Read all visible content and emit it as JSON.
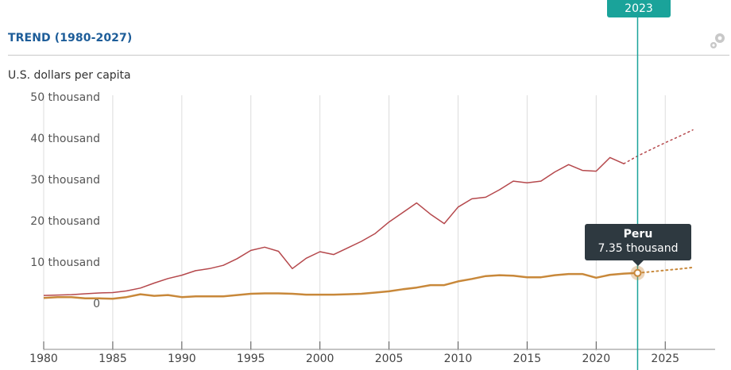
{
  "header": {
    "title": "TREND (1980-2027)"
  },
  "ylabel": "U.S. dollars per capita",
  "selected_year": "2023",
  "tooltip": {
    "name": "Peru",
    "value": "7.35 thousand"
  },
  "colors": {
    "title": "#1d5d99",
    "accent": "#1aa39a",
    "series_top": "#b5484c",
    "series_peru": "#c8883a"
  },
  "chart_data": {
    "type": "line",
    "xlim": [
      1980,
      2027
    ],
    "ylim": [
      0,
      50000
    ],
    "x_ticks": [
      "1980",
      "1985",
      "1990",
      "1995",
      "2000",
      "2005",
      "2010",
      "2015",
      "2020",
      "2025"
    ],
    "y_ticks": [
      "50 thousand",
      "40 thousand",
      "30 thousand",
      "20 thousand",
      "10 thousand",
      "0"
    ],
    "y_tick_values": [
      50000,
      40000,
      30000,
      20000,
      10000,
      0
    ],
    "series": [
      {
        "color": "#b5484c",
        "actual": [
          [
            1980,
            1900
          ],
          [
            1981,
            2000
          ],
          [
            1982,
            2100
          ],
          [
            1983,
            2300
          ],
          [
            1984,
            2500
          ],
          [
            1985,
            2600
          ],
          [
            1986,
            3000
          ],
          [
            1987,
            3700
          ],
          [
            1988,
            4900
          ],
          [
            1989,
            6000
          ],
          [
            1990,
            6800
          ],
          [
            1991,
            7900
          ],
          [
            1992,
            8400
          ],
          [
            1993,
            9200
          ],
          [
            1994,
            10800
          ],
          [
            1995,
            12800
          ],
          [
            1996,
            13600
          ],
          [
            1997,
            12600
          ],
          [
            1998,
            8400
          ],
          [
            1999,
            10900
          ],
          [
            2000,
            12500
          ],
          [
            2001,
            11800
          ],
          [
            2002,
            13400
          ],
          [
            2003,
            15000
          ],
          [
            2004,
            16900
          ],
          [
            2005,
            19700
          ],
          [
            2006,
            22000
          ],
          [
            2007,
            24300
          ],
          [
            2008,
            21600
          ],
          [
            2009,
            19300
          ],
          [
            2010,
            23300
          ],
          [
            2011,
            25300
          ],
          [
            2012,
            25700
          ],
          [
            2013,
            27500
          ],
          [
            2014,
            29600
          ],
          [
            2015,
            29200
          ],
          [
            2016,
            29600
          ],
          [
            2017,
            31800
          ],
          [
            2018,
            33600
          ],
          [
            2019,
            32200
          ],
          [
            2020,
            32000
          ],
          [
            2021,
            35300
          ],
          [
            2022,
            33800
          ]
        ],
        "projected": [
          [
            2022,
            33800
          ],
          [
            2023,
            35700
          ],
          [
            2024,
            37300
          ],
          [
            2025,
            38900
          ],
          [
            2026,
            40400
          ],
          [
            2027,
            42000
          ]
        ]
      },
      {
        "name": "Peru",
        "color": "#c8883a",
        "actual": [
          [
            1980,
            1300
          ],
          [
            1981,
            1500
          ],
          [
            1982,
            1500
          ],
          [
            1983,
            1200
          ],
          [
            1984,
            1200
          ],
          [
            1985,
            1100
          ],
          [
            1986,
            1500
          ],
          [
            1987,
            2200
          ],
          [
            1988,
            1800
          ],
          [
            1989,
            2000
          ],
          [
            1990,
            1500
          ],
          [
            1991,
            1700
          ],
          [
            1992,
            1700
          ],
          [
            1993,
            1700
          ],
          [
            1994,
            2000
          ],
          [
            1995,
            2300
          ],
          [
            1996,
            2400
          ],
          [
            1997,
            2400
          ],
          [
            1998,
            2300
          ],
          [
            1999,
            2100
          ],
          [
            2000,
            2100
          ],
          [
            2001,
            2100
          ],
          [
            2002,
            2200
          ],
          [
            2003,
            2300
          ],
          [
            2004,
            2600
          ],
          [
            2005,
            2900
          ],
          [
            2006,
            3400
          ],
          [
            2007,
            3800
          ],
          [
            2008,
            4400
          ],
          [
            2009,
            4400
          ],
          [
            2010,
            5300
          ],
          [
            2011,
            5900
          ],
          [
            2012,
            6600
          ],
          [
            2013,
            6800
          ],
          [
            2014,
            6700
          ],
          [
            2015,
            6300
          ],
          [
            2016,
            6300
          ],
          [
            2017,
            6800
          ],
          [
            2018,
            7100
          ],
          [
            2019,
            7100
          ],
          [
            2020,
            6200
          ],
          [
            2021,
            6900
          ],
          [
            2022,
            7200
          ],
          [
            2023,
            7350
          ]
        ],
        "projected": [
          [
            2023,
            7350
          ],
          [
            2024,
            7650
          ],
          [
            2025,
            8000
          ],
          [
            2026,
            8300
          ],
          [
            2027,
            8700
          ]
        ]
      }
    ],
    "highlight": {
      "series": "Peru",
      "x": 2023,
      "y": 7350
    },
    "grid": "vertical"
  }
}
